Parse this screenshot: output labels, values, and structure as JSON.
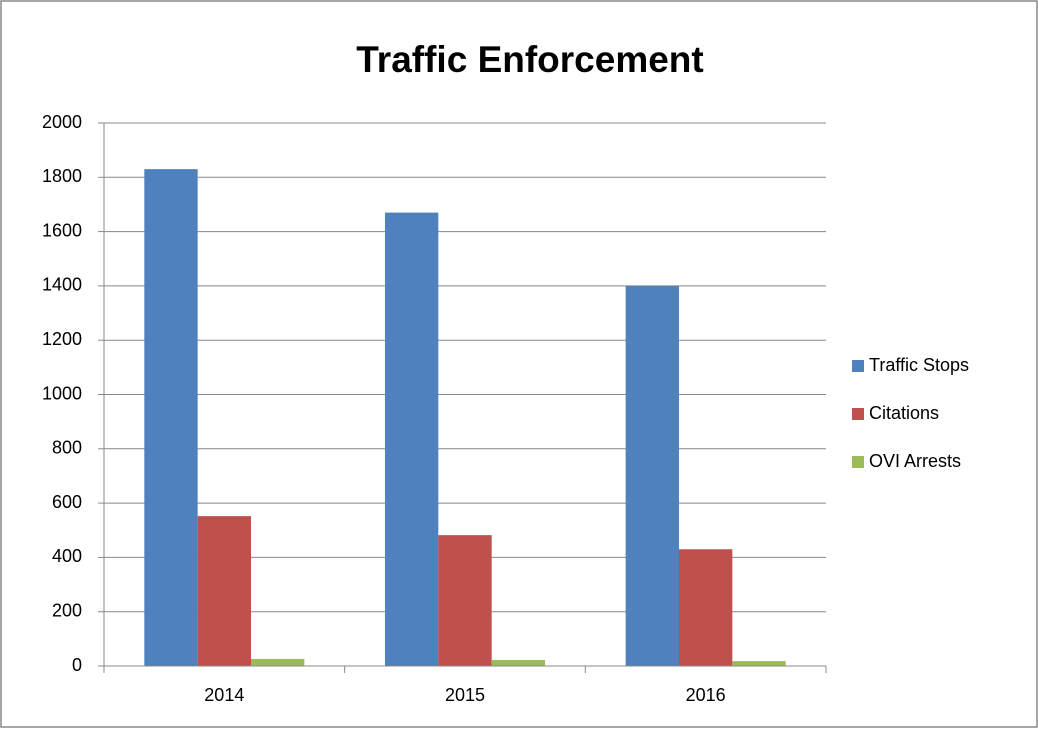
{
  "chart_data": {
    "type": "bar",
    "title": "Traffic Enforcement",
    "categories": [
      "2014",
      "2015",
      "2016"
    ],
    "series": [
      {
        "name": "Traffic Stops",
        "color": "#4f81bd",
        "values": [
          1830,
          1670,
          1400
        ]
      },
      {
        "name": "Citations",
        "color": "#c0504d",
        "values": [
          552,
          482,
          430
        ]
      },
      {
        "name": "OVI Arrests",
        "color": "#9bbb59",
        "values": [
          26,
          22,
          18
        ]
      }
    ],
    "ylim": [
      0,
      2000
    ],
    "yticks": [
      0,
      200,
      400,
      600,
      800,
      1000,
      1200,
      1400,
      1600,
      1800,
      2000
    ],
    "grid": true,
    "legend": "right"
  }
}
